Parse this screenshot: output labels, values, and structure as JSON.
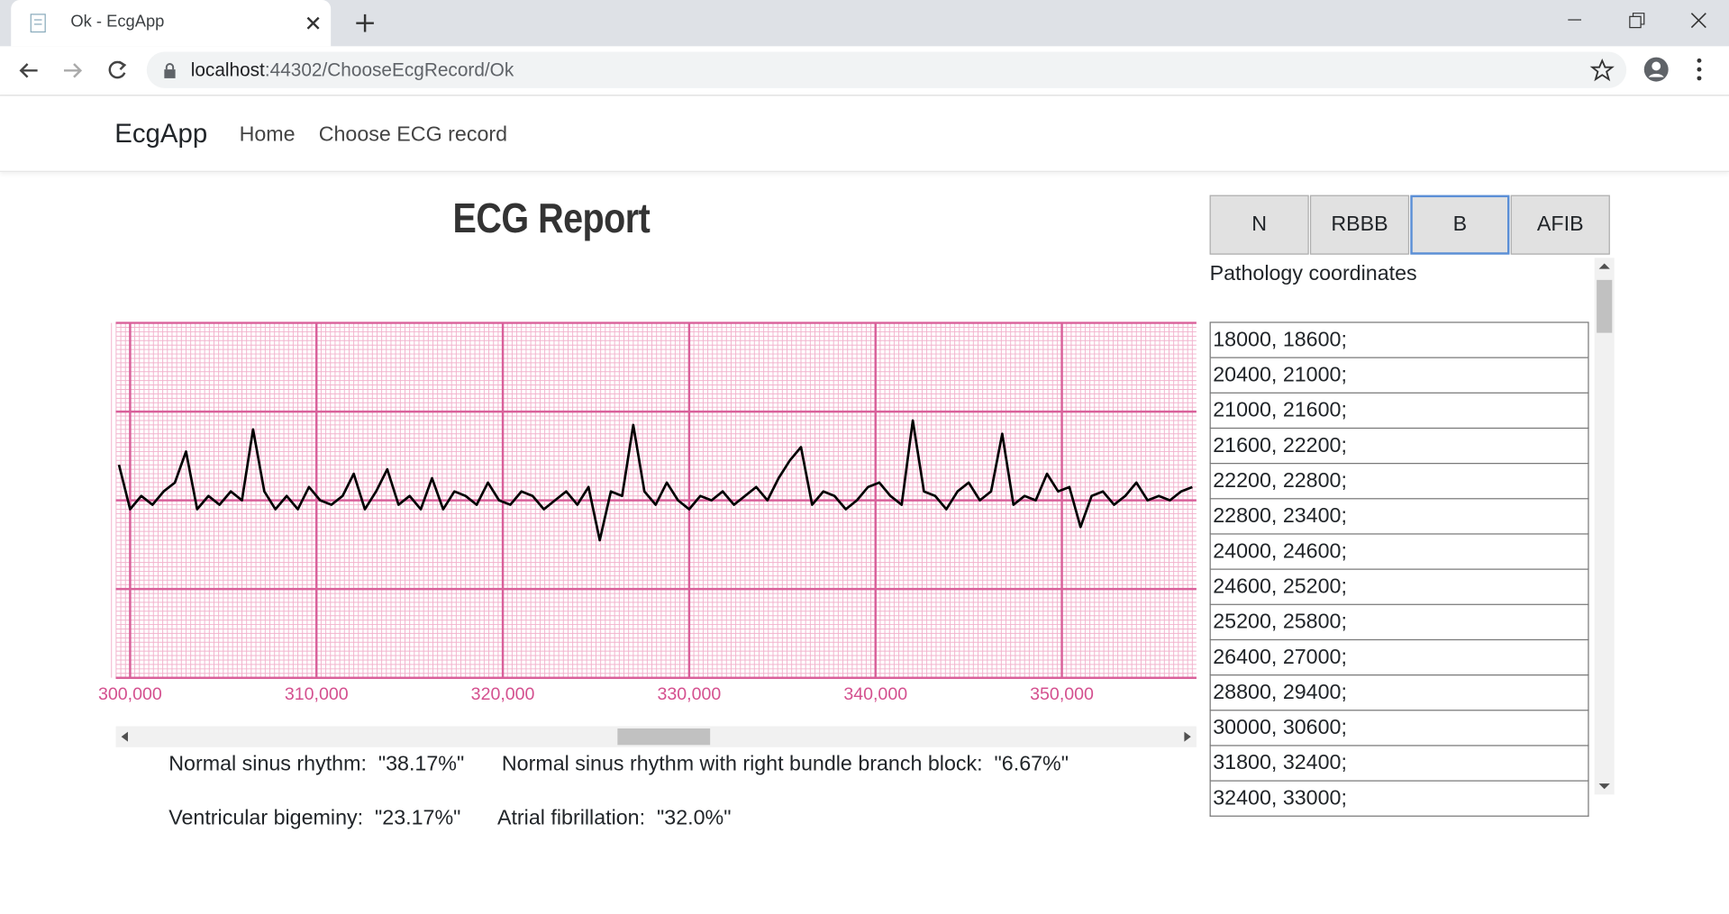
{
  "browser": {
    "tab_title": "Ok - EcgApp",
    "url_host": "localhost",
    "url_path": ":44302/ChooseEcgRecord/Ok"
  },
  "nav": {
    "brand": "EcgApp",
    "links": [
      "Home",
      "Choose ECG record"
    ]
  },
  "report_title": "ECG Report",
  "chart_data": {
    "type": "line",
    "color": "#000000",
    "x": [
      299400,
      300000,
      300600,
      301200,
      301800,
      302400,
      303000,
      303600,
      304200,
      304800,
      305400,
      306000,
      306600,
      307200,
      307800,
      308400,
      309000,
      309600,
      310200,
      310800,
      311400,
      312000,
      312600,
      313200,
      313800,
      314400,
      315000,
      315600,
      316200,
      316800,
      317400,
      318000,
      318600,
      319200,
      319800,
      320400,
      321000,
      321600,
      322200,
      322800,
      323400,
      324000,
      324600,
      325200,
      325800,
      326400,
      327000,
      327600,
      328200,
      328800,
      329400,
      330000,
      330600,
      331200,
      331800,
      332400,
      333000,
      333600,
      334200,
      334800,
      335400,
      336000,
      336600,
      337200,
      337800,
      338400,
      339000,
      339600,
      340200,
      340800,
      341400,
      342000,
      342600,
      343200,
      343800,
      344400,
      345000,
      345600,
      346200,
      346800,
      347400,
      348000,
      348600,
      349200,
      349800,
      350400,
      351000,
      351600,
      352200,
      352800,
      353400,
      354000,
      354600,
      355200,
      355800,
      356400,
      357000
    ],
    "values": [
      0.4,
      -0.1,
      0.05,
      -0.05,
      0.1,
      0.2,
      0.55,
      -0.1,
      0.05,
      -0.05,
      0.1,
      0.0,
      0.8,
      0.1,
      -0.1,
      0.05,
      -0.1,
      0.15,
      0.0,
      -0.05,
      0.05,
      0.3,
      -0.1,
      0.1,
      0.35,
      -0.05,
      0.05,
      -0.1,
      0.25,
      -0.1,
      0.1,
      0.05,
      -0.05,
      0.2,
      0.0,
      -0.05,
      0.1,
      0.05,
      -0.1,
      0.0,
      0.1,
      -0.05,
      0.15,
      -0.45,
      0.1,
      0.05,
      0.85,
      0.1,
      -0.05,
      0.2,
      0.0,
      -0.1,
      0.05,
      0.0,
      0.1,
      -0.05,
      0.05,
      0.15,
      0.0,
      0.25,
      0.45,
      0.6,
      -0.05,
      0.1,
      0.05,
      -0.1,
      0.0,
      0.15,
      0.2,
      0.05,
      -0.05,
      0.9,
      0.1,
      0.05,
      -0.1,
      0.1,
      0.2,
      0.0,
      0.1,
      0.75,
      -0.05,
      0.05,
      0.0,
      0.3,
      0.1,
      0.15,
      -0.3,
      0.05,
      0.1,
      -0.05,
      0.05,
      0.2,
      0.0,
      0.05,
      0.0,
      0.1,
      0.15
    ],
    "xlim": [
      299231,
      357219
    ],
    "ylim": [
      -2,
      2
    ],
    "xticks": [
      {
        "value": 300000,
        "label": "300,000"
      },
      {
        "value": 310000,
        "label": "310,000"
      },
      {
        "value": 320000,
        "label": "320,000"
      },
      {
        "value": 330000,
        "label": "330,000"
      },
      {
        "value": 340000,
        "label": "340,000"
      },
      {
        "value": 350000,
        "label": "350,000"
      }
    ],
    "grid": true
  },
  "stats": [
    [
      {
        "label": "Normal sinus rhythm:",
        "value": "\"38.17%\""
      },
      {
        "label": "Normal sinus rhythm with right bundle branch block:",
        "value": "\"6.67%\""
      }
    ],
    [
      {
        "label": "Ventricular bigeminy:",
        "value": "\"23.17%\""
      },
      {
        "label": "Atrial fibrillation:",
        "value": "\"32.0%\""
      }
    ]
  ],
  "tabs": [
    "N",
    "RBBB",
    "B",
    "AFIB"
  ],
  "selected_tab": 2,
  "list_header": "Pathology coordinates",
  "coordinates": [
    "18000, 18600;",
    "20400, 21000;",
    "21000, 21600;",
    "21600, 22200;",
    "22200, 22800;",
    "22800, 23400;",
    "24000, 24600;",
    "24600, 25200;",
    "25200, 25800;",
    "26400, 27000;",
    "28800, 29400;",
    "30000, 30600;",
    "31800, 32400;",
    "32400, 33000;"
  ]
}
